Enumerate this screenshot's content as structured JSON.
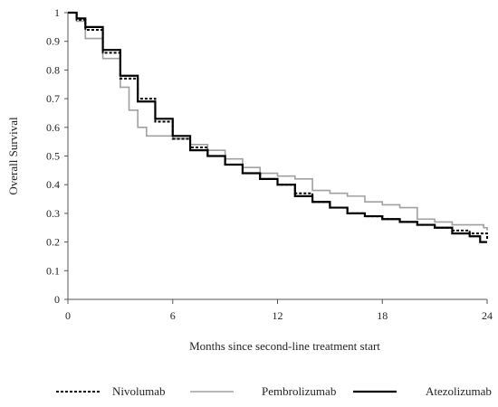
{
  "chart_data": {
    "type": "line",
    "title": "",
    "xlabel": "Months since second-line treatment start",
    "ylabel": "Overall Survival",
    "xlim": [
      0,
      24
    ],
    "ylim": [
      0,
      1
    ],
    "x_ticks": [
      0,
      6,
      12,
      18,
      24
    ],
    "y_ticks": [
      0,
      0.1,
      0.2,
      0.3,
      0.4,
      0.5,
      0.6,
      0.7,
      0.8,
      0.9,
      1
    ],
    "y_tick_labels": [
      "0",
      "0.1",
      "0.2",
      "0.3",
      "0.4",
      "0.5",
      "0.6",
      "0.7",
      "0.8",
      "0.9",
      "1"
    ],
    "grid": false,
    "legend_position": "bottom",
    "step": true,
    "series": [
      {
        "name": "Nivolumab",
        "color": "#000000",
        "style": "dotted",
        "x": [
          0,
          0.5,
          1,
          2,
          3,
          4,
          5,
          6,
          7,
          8,
          9,
          10,
          11,
          12,
          13,
          14,
          15,
          16,
          17,
          18,
          19,
          20,
          21,
          22,
          23,
          24
        ],
        "y": [
          1,
          0.975,
          0.94,
          0.86,
          0.77,
          0.7,
          0.62,
          0.56,
          0.53,
          0.5,
          0.47,
          0.44,
          0.42,
          0.4,
          0.37,
          0.34,
          0.32,
          0.3,
          0.29,
          0.28,
          0.27,
          0.26,
          0.25,
          0.24,
          0.23,
          0.21
        ]
      },
      {
        "name": "Pembrolizumab",
        "color": "#a0a0a0",
        "style": "solid",
        "x": [
          0,
          0.5,
          1,
          2,
          3,
          3.5,
          4,
          4.5,
          5,
          6,
          7,
          8,
          9,
          10,
          11,
          12,
          13,
          14,
          15,
          16,
          17,
          18,
          19,
          20,
          21,
          22,
          23,
          23.8,
          24
        ],
        "y": [
          1,
          0.97,
          0.91,
          0.84,
          0.74,
          0.66,
          0.6,
          0.57,
          0.57,
          0.56,
          0.54,
          0.52,
          0.49,
          0.46,
          0.44,
          0.43,
          0.42,
          0.38,
          0.37,
          0.36,
          0.34,
          0.33,
          0.32,
          0.28,
          0.27,
          0.26,
          0.26,
          0.25,
          0.24
        ]
      },
      {
        "name": "Atezolizumab",
        "color": "#000000",
        "style": "solid",
        "x": [
          0,
          0.5,
          1,
          2,
          3,
          4,
          5,
          6,
          7,
          8,
          9,
          10,
          11,
          12,
          13,
          14,
          15,
          16,
          17,
          18,
          19,
          20,
          21,
          22,
          23,
          23.6,
          24
        ],
        "y": [
          1,
          0.98,
          0.95,
          0.87,
          0.78,
          0.69,
          0.63,
          0.57,
          0.52,
          0.5,
          0.47,
          0.44,
          0.42,
          0.4,
          0.36,
          0.34,
          0.32,
          0.3,
          0.29,
          0.28,
          0.27,
          0.26,
          0.25,
          0.23,
          0.22,
          0.2,
          0.2
        ]
      }
    ]
  }
}
